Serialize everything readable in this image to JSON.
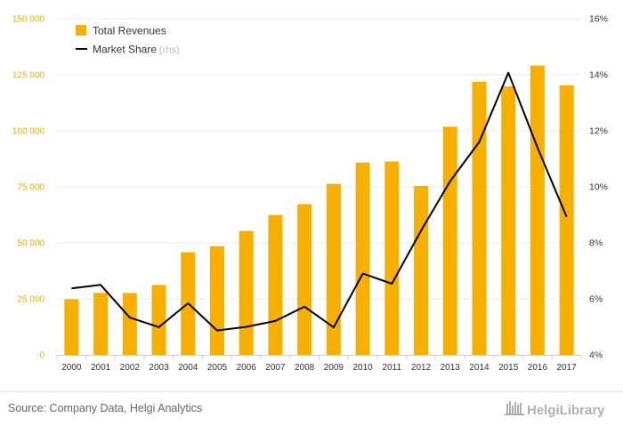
{
  "chart_data": {
    "type": "bar",
    "categories": [
      "2000",
      "2001",
      "2002",
      "2003",
      "2004",
      "2005",
      "2006",
      "2007",
      "2008",
      "2009",
      "2010",
      "2011",
      "2012",
      "2013",
      "2014",
      "2015",
      "2016",
      "2017"
    ],
    "series": [
      {
        "name": "Total Revenues",
        "type": "bar",
        "axis": "left",
        "values": [
          24800,
          27700,
          27600,
          31200,
          45800,
          48500,
          55300,
          62400,
          67300,
          76300,
          85800,
          86300,
          75400,
          101800,
          121900,
          119800,
          129100,
          120300
        ]
      },
      {
        "name": "Market Share",
        "name_suffix": "(rhs)",
        "type": "line",
        "axis": "right",
        "values": [
          6.37,
          6.5,
          5.33,
          4.99,
          5.84,
          4.87,
          5.0,
          5.21,
          5.72,
          4.98,
          6.9,
          6.54,
          8.43,
          10.2,
          11.6,
          14.07,
          11.4,
          8.93
        ]
      }
    ],
    "yaxis_left": {
      "min": 0,
      "max": 150000,
      "ticks": [
        "0",
        "25 000",
        "50 000",
        "75 000",
        "100 000",
        "125 000",
        "150 000"
      ]
    },
    "yaxis_right": {
      "min": 4,
      "max": 16,
      "ticks": [
        "4%",
        "6%",
        "8%",
        "10%",
        "12%",
        "14%",
        "16%"
      ]
    },
    "legend_position": "top-left",
    "grid": "horizontal",
    "colors": {
      "bar": "#f7b000",
      "line": "#000000",
      "left_ticks": "#f2ad00"
    }
  },
  "footer": {
    "source": "Source: Company Data, Helgi Analytics",
    "brand": "HelgiLibrary"
  }
}
